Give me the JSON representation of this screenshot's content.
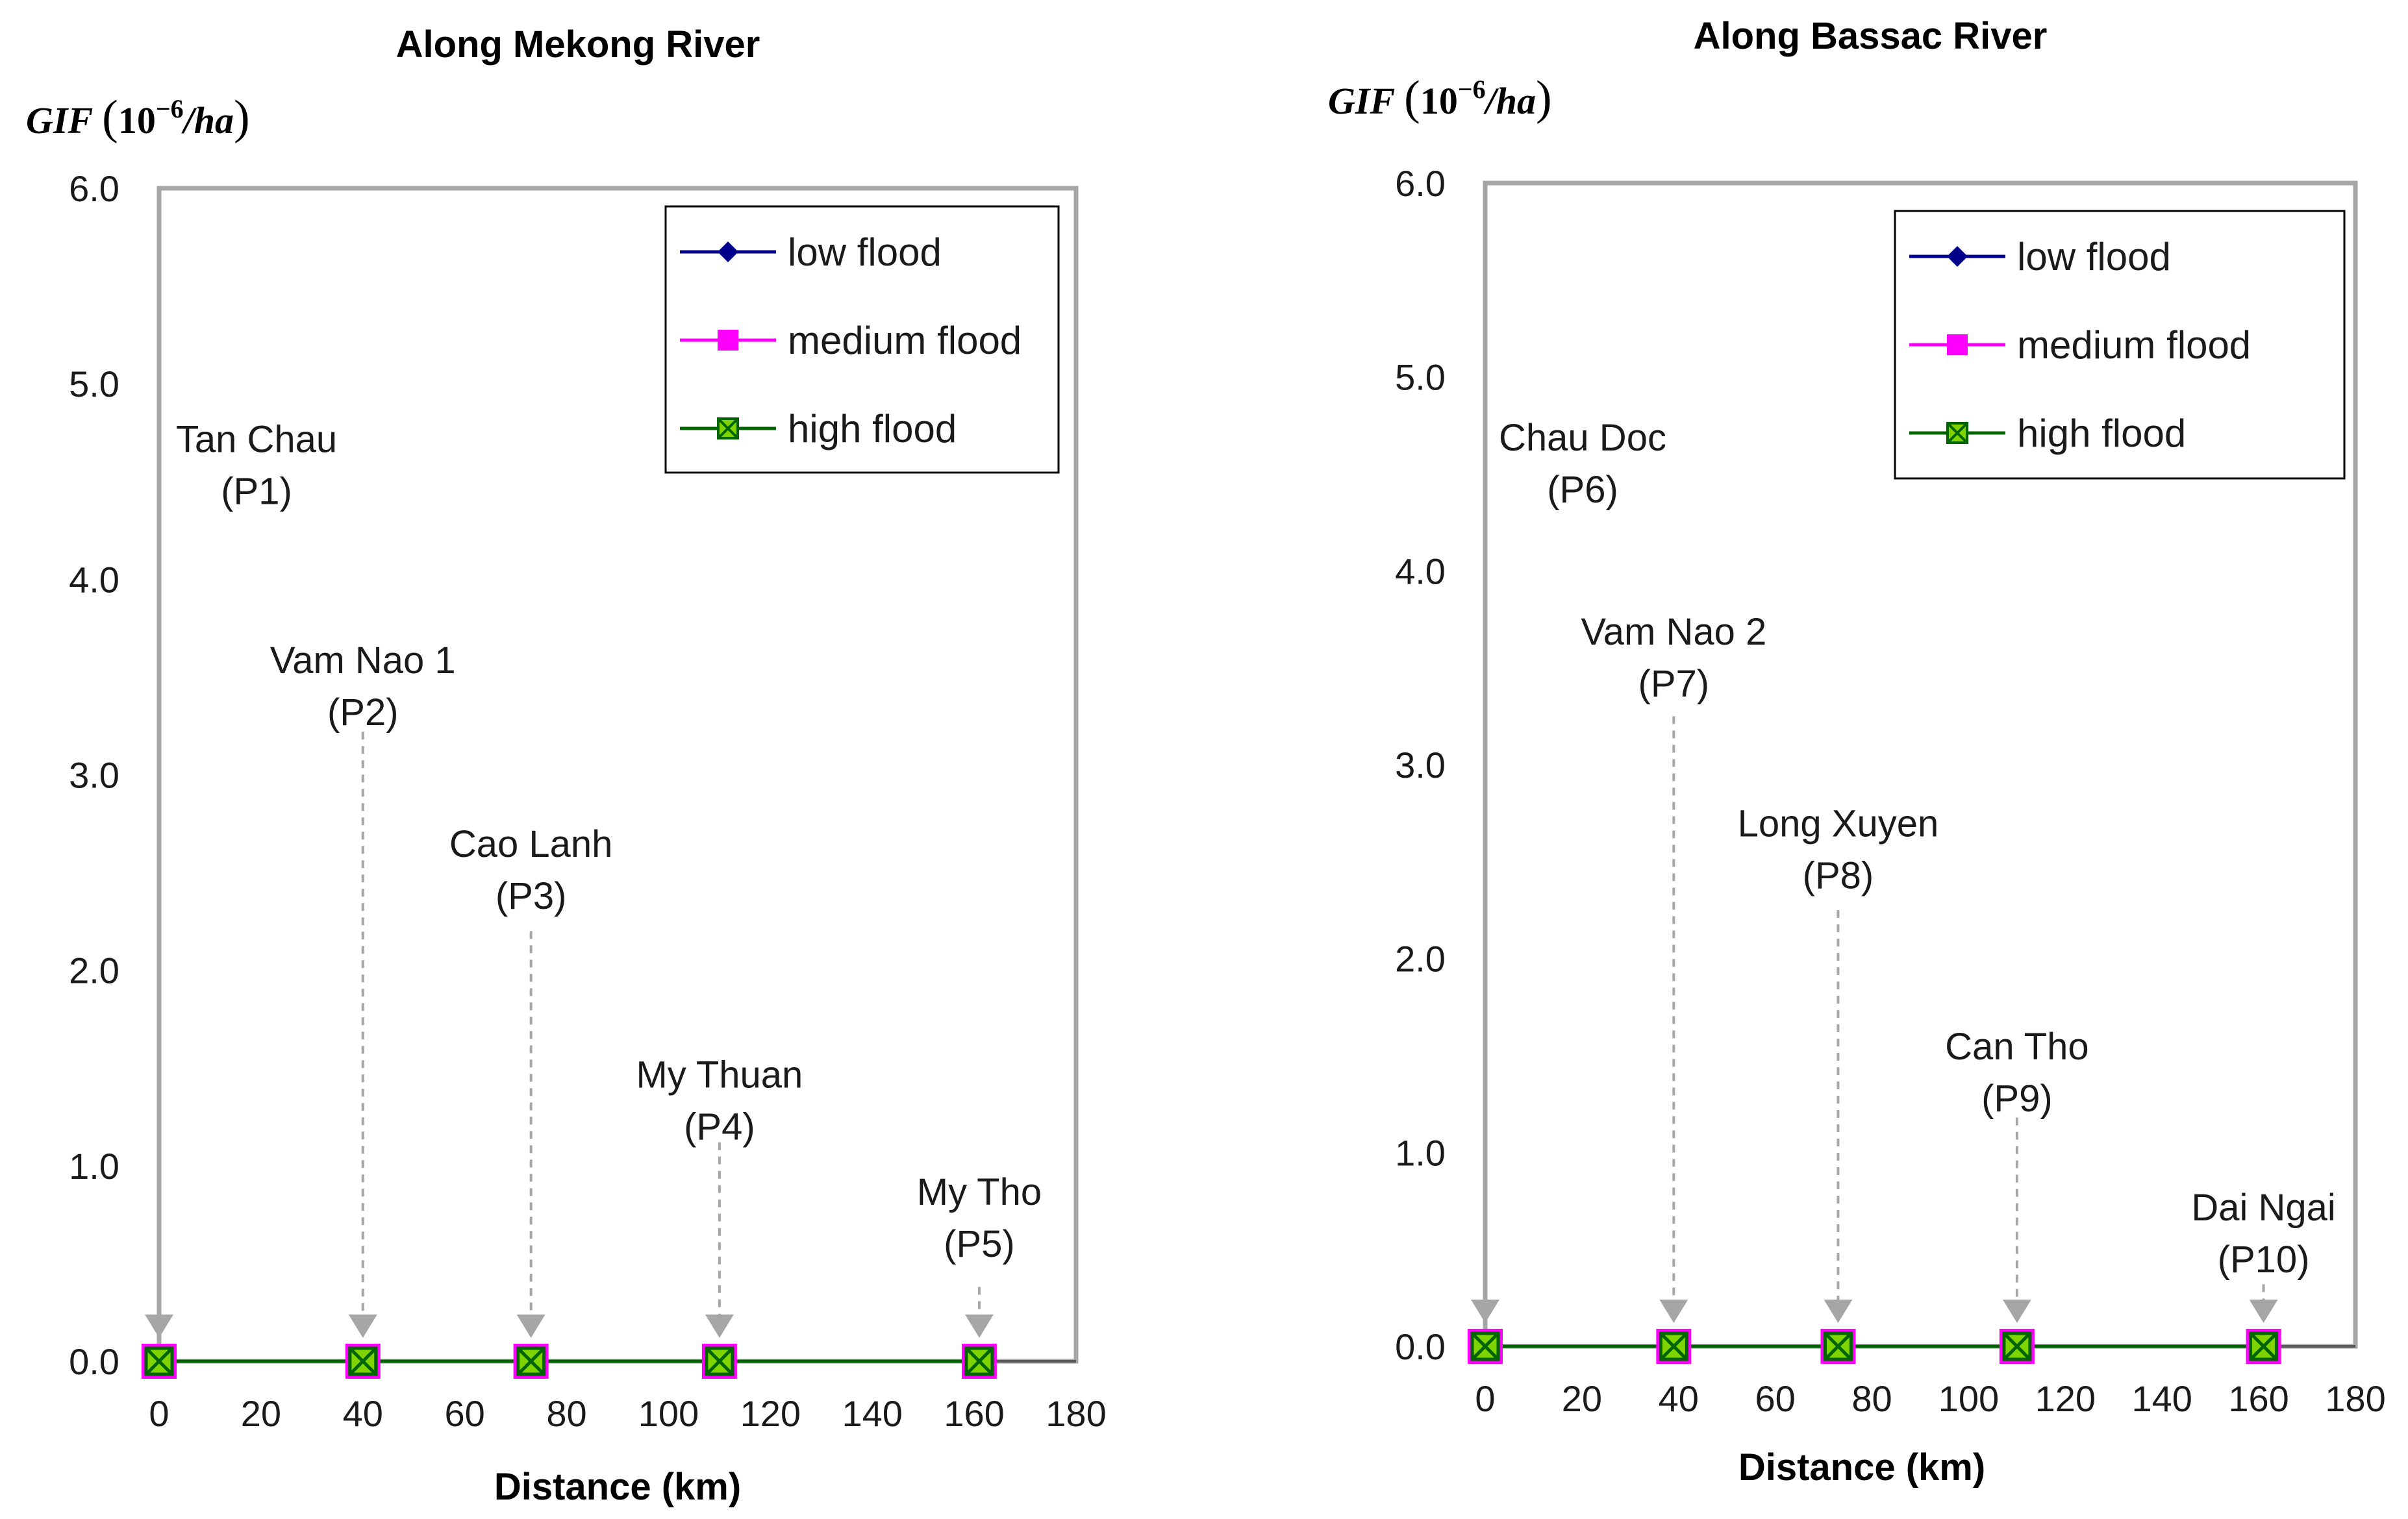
{
  "chart_data": [
    {
      "type": "line",
      "title": "Along Mekong River",
      "ylabel_main": "GIF",
      "ylabel_unit_base": "10",
      "ylabel_unit_exp": "−6",
      "ylabel_unit_rest": "/ha",
      "xlabel": "Distance (km)",
      "xlim": [
        0,
        180
      ],
      "ylim": [
        0,
        6
      ],
      "xticks": [
        "0",
        "20",
        "40",
        "60",
        "80",
        "100",
        "120",
        "140",
        "160",
        "180"
      ],
      "yticks": [
        "0.0",
        "1.0",
        "2.0",
        "3.0",
        "4.0",
        "5.0",
        "6.0"
      ],
      "x": [
        0,
        40,
        73,
        110,
        161
      ],
      "series": [
        {
          "name": "low flood",
          "color": "#00008b",
          "marker": "diamond",
          "values": [
            0,
            0,
            0,
            0,
            0
          ]
        },
        {
          "name": "medium flood",
          "color": "#ff00ff",
          "marker": "square",
          "values": [
            0,
            0,
            0,
            0,
            0
          ]
        },
        {
          "name": "high flood",
          "color": "#006400",
          "marker": "xsquare",
          "values": [
            0,
            0,
            0,
            0,
            0
          ]
        }
      ],
      "annotations": [
        {
          "name": "Tan Chau",
          "code": "(P1)",
          "x": 0,
          "label_y": 4.65,
          "line_top": 4.35
        },
        {
          "name": "Vam Nao 1",
          "code": "(P2)",
          "x": 40,
          "label_y": 3.52,
          "line_top": 3.22
        },
        {
          "name": "Cao Lanh",
          "code": "(P3)",
          "x": 73,
          "label_y": 2.58,
          "line_top": 2.2
        },
        {
          "name": "My Thuan",
          "code": "(P4)",
          "x": 110,
          "label_y": 1.4,
          "line_top": 1.12
        },
        {
          "name": "My Tho",
          "code": "(P5)",
          "x": 161,
          "label_y": 0.8,
          "line_top": 0.38
        }
      ],
      "legend_position": "top-right"
    },
    {
      "type": "line",
      "title": "Along Bassac River",
      "ylabel_main": "GIF",
      "ylabel_unit_base": "10",
      "ylabel_unit_exp": "−6",
      "ylabel_unit_rest": "/ha",
      "xlabel": "Distance (km)",
      "xlim": [
        0,
        180
      ],
      "ylim": [
        0,
        6
      ],
      "xticks": [
        "0",
        "20",
        "40",
        "60",
        "80",
        "100",
        "120",
        "140",
        "160",
        "180"
      ],
      "yticks": [
        "0.0",
        "1.0",
        "2.0",
        "3.0",
        "4.0",
        "5.0",
        "6.0"
      ],
      "x": [
        0,
        39,
        73,
        110,
        161
      ],
      "series": [
        {
          "name": "low flood",
          "color": "#00008b",
          "marker": "diamond",
          "values": [
            0,
            0,
            0,
            0,
            0
          ]
        },
        {
          "name": "medium flood",
          "color": "#ff00ff",
          "marker": "square",
          "values": [
            0,
            0,
            0,
            0,
            0
          ]
        },
        {
          "name": "high flood",
          "color": "#006400",
          "marker": "xsquare",
          "values": [
            0,
            0,
            0,
            0,
            0
          ]
        }
      ],
      "annotations": [
        {
          "name": "Chau Doc",
          "code": "(P6)",
          "x": 0,
          "label_y": 4.62,
          "line_top": 4.35
        },
        {
          "name": "Vam Nao 2",
          "code": "(P7)",
          "x": 39,
          "label_y": 3.62,
          "line_top": 3.25
        },
        {
          "name": "Long Xuyen",
          "code": "(P8)",
          "x": 73,
          "label_y": 2.63,
          "line_top": 2.25
        },
        {
          "name": "Can Tho",
          "code": "(P9)",
          "x": 110,
          "label_y": 1.48,
          "line_top": 1.18
        },
        {
          "name": "Dai Ngai",
          "code": "(P10)",
          "x": 161,
          "label_y": 0.65,
          "line_top": 0.32
        }
      ],
      "legend_position": "top-right"
    }
  ]
}
